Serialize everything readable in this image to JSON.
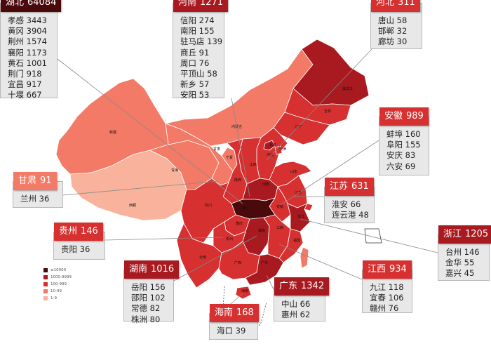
{
  "colors": {
    "c1": "#f9b39c",
    "c2": "#f27a67",
    "c3": "#d73030",
    "c4": "#a81a20",
    "c5": "#4a0a0c",
    "neighbor": "#ffffff",
    "border": "#ffffff",
    "leader": "#888888",
    "card_bg": "#e8e8e8"
  },
  "legend": [
    {
      "label": "≥10000",
      "color": "#4a0a0c"
    },
    {
      "label": "1000-9999",
      "color": "#a81a20"
    },
    {
      "label": "100-999",
      "color": "#d73030"
    },
    {
      "label": "10-99",
      "color": "#f27a67"
    },
    {
      "label": "1-9",
      "color": "#f9b39c"
    }
  ],
  "map_labels": [
    "新疆",
    "西藏",
    "青海",
    "甘肃",
    "内蒙古",
    "黑龙江",
    "吉林",
    "辽宁",
    "河北",
    "山西",
    "陕西",
    "宁夏",
    "河南",
    "湖北",
    "四川",
    "重庆",
    "贵州",
    "云南",
    "湖南",
    "江西",
    "广西",
    "广东",
    "海南",
    "福建",
    "浙江",
    "安徽",
    "江苏",
    "山东",
    "北京",
    "天津"
  ],
  "cards": {
    "hubei": {
      "name": "湖北",
      "count": "64084",
      "color": "#4a0a0c",
      "cities": [
        "孝感 3443",
        "黄冈 3904",
        "荆州 1574",
        "襄阳 1173",
        "黄石 1001",
        "荆门 918",
        "宜昌 917",
        "十堰 667"
      ]
    },
    "henan": {
      "name": "河南",
      "count": "1271",
      "color": "#a81a20",
      "cities": [
        "信阳 274",
        "南阳 155",
        "驻马店 139",
        "商丘 91",
        "周口 76",
        "平顶山 58",
        "新乡 57",
        "安阳 53"
      ]
    },
    "hebei": {
      "name": "河北",
      "count": "311",
      "color": "#d73030",
      "cities": [
        "唐山 58",
        "邯郸 32",
        "廊坊 30"
      ]
    },
    "anhui": {
      "name": "安徽",
      "count": "989",
      "color": "#d73030",
      "cities": [
        "蚌埠 160",
        "阜阳 155",
        "安庆 83",
        "六安 69"
      ]
    },
    "gansu": {
      "name": "甘肃",
      "count": "91",
      "color": "#f27a67",
      "cities": [
        "兰州 36"
      ]
    },
    "jiangsu": {
      "name": "江苏",
      "count": "631",
      "color": "#d73030",
      "cities": [
        "淮安 66",
        "连云港 48"
      ]
    },
    "guizhou": {
      "name": "贵州",
      "count": "146",
      "color": "#d73030",
      "cities": [
        "贵阳 36"
      ]
    },
    "zhejiang": {
      "name": "浙江",
      "count": "1205",
      "color": "#a81a20",
      "cities": [
        "台州 146",
        "金华 55",
        "嘉兴 45"
      ]
    },
    "hunan": {
      "name": "湖南",
      "count": "1016",
      "color": "#a81a20",
      "cities": [
        "岳阳 156",
        "邵阳 102",
        "常德 82",
        "株洲 80"
      ]
    },
    "jiangxi": {
      "name": "江西",
      "count": "934",
      "color": "#d73030",
      "cities": [
        "九江 118",
        "宜春 106",
        "赣州 76"
      ]
    },
    "guangdong": {
      "name": "广东",
      "count": "1342",
      "color": "#a81a20",
      "cities": [
        "中山 66",
        "惠州 62"
      ]
    },
    "hainan": {
      "name": "海南",
      "count": "168",
      "color": "#d73030",
      "cities": [
        "海口 39"
      ]
    }
  }
}
